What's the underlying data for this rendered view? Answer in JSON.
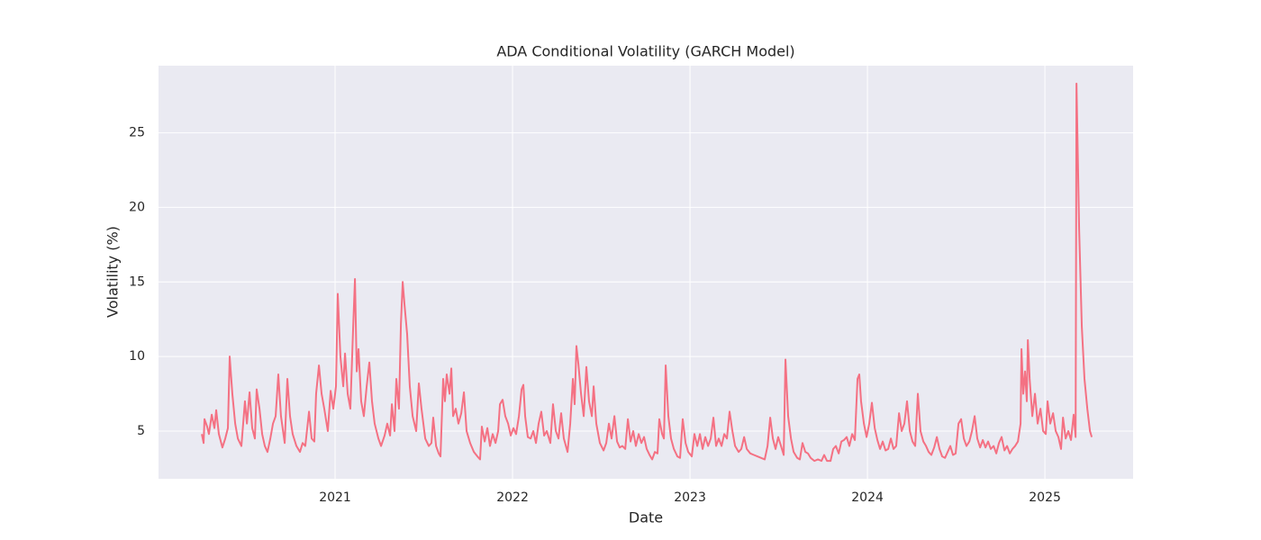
{
  "chart_data": {
    "type": "line",
    "title": "ADA Conditional Volatility (GARCH Model)",
    "x_label": "Date",
    "y_label": "Volatility (%)",
    "color": "#f47183",
    "grid": true,
    "xlim": [
      2020.005,
      2025.497
    ],
    "ylim": [
      1.8,
      29.5
    ],
    "xticks": [
      2021,
      2022,
      2023,
      2024,
      2025
    ],
    "yticks": [
      5,
      10,
      15,
      20,
      25
    ],
    "x": [
      2020.249,
      2020.259,
      2020.264,
      2020.279,
      2020.289,
      2020.305,
      2020.32,
      2020.33,
      2020.345,
      2020.365,
      2020.381,
      2020.396,
      2020.406,
      2020.421,
      2020.437,
      2020.452,
      2020.472,
      2020.492,
      2020.503,
      2020.518,
      2020.533,
      2020.548,
      2020.558,
      2020.574,
      2020.589,
      2020.604,
      2020.619,
      2020.635,
      2020.65,
      2020.665,
      2020.68,
      2020.695,
      2020.716,
      2020.731,
      2020.746,
      2020.761,
      2020.782,
      2020.802,
      2020.817,
      2020.832,
      2020.853,
      2020.868,
      2020.883,
      2020.893,
      2020.909,
      2020.924,
      2020.939,
      2020.959,
      2020.975,
      2020.99,
      2021.005,
      2021.015,
      2021.03,
      2021.046,
      2021.056,
      2021.071,
      2021.086,
      2021.102,
      2021.112,
      2021.122,
      2021.132,
      2021.147,
      2021.162,
      2021.178,
      2021.193,
      2021.208,
      2021.223,
      2021.244,
      2021.259,
      2021.279,
      2021.294,
      2021.31,
      2021.32,
      2021.335,
      2021.345,
      2021.36,
      2021.371,
      2021.381,
      2021.391,
      2021.406,
      2021.421,
      2021.437,
      2021.457,
      2021.472,
      2021.487,
      2021.508,
      2021.528,
      2021.543,
      2021.553,
      2021.569,
      2021.584,
      2021.594,
      2021.609,
      2021.619,
      2021.629,
      2021.645,
      2021.655,
      2021.665,
      2021.68,
      2021.695,
      2021.711,
      2021.726,
      2021.741,
      2021.761,
      2021.782,
      2021.802,
      2021.817,
      2021.827,
      2021.843,
      2021.858,
      2021.873,
      2021.888,
      2021.904,
      2021.919,
      2021.929,
      2021.944,
      2021.959,
      2021.975,
      2021.99,
      2022.005,
      2022.02,
      2022.036,
      2022.051,
      2022.061,
      2022.071,
      2022.086,
      2022.102,
      2022.117,
      2022.132,
      2022.147,
      2022.162,
      2022.178,
      2022.193,
      2022.213,
      2022.228,
      2022.244,
      2022.259,
      2022.274,
      2022.289,
      2022.31,
      2022.325,
      2022.34,
      2022.35,
      2022.36,
      2022.371,
      2022.386,
      2022.401,
      2022.416,
      2022.431,
      2022.447,
      2022.457,
      2022.472,
      2022.492,
      2022.513,
      2022.528,
      2022.543,
      2022.558,
      2022.574,
      2022.589,
      2022.604,
      2022.619,
      2022.635,
      2022.65,
      2022.665,
      2022.68,
      2022.695,
      2022.711,
      2022.726,
      2022.741,
      2022.756,
      2022.772,
      2022.787,
      2022.802,
      2022.817,
      2022.827,
      2022.843,
      2022.853,
      2022.863,
      2022.878,
      2022.893,
      2022.909,
      2022.929,
      2022.944,
      2022.959,
      2022.975,
      2022.99,
      2023.01,
      2023.025,
      2023.041,
      2023.056,
      2023.071,
      2023.086,
      2023.102,
      2023.117,
      2023.132,
      2023.147,
      2023.162,
      2023.178,
      2023.193,
      2023.208,
      2023.223,
      2023.239,
      2023.254,
      2023.274,
      2023.289,
      2023.305,
      2023.32,
      2023.34,
      2023.36,
      2023.381,
      2023.401,
      2023.421,
      2023.437,
      2023.452,
      2023.467,
      2023.482,
      2023.497,
      2023.513,
      2023.528,
      2023.538,
      2023.553,
      2023.569,
      2023.584,
      2023.604,
      2023.619,
      2023.634,
      2023.65,
      2023.665,
      2023.68,
      2023.701,
      2023.721,
      2023.741,
      2023.756,
      2023.772,
      2023.792,
      2023.807,
      2023.822,
      2023.838,
      2023.853,
      2023.868,
      2023.883,
      2023.898,
      2023.914,
      2023.929,
      2023.944,
      2023.954,
      2023.964,
      2023.98,
      2023.995,
      2024.01,
      2024.025,
      2024.041,
      2024.056,
      2024.071,
      2024.086,
      2024.102,
      2024.117,
      2024.132,
      2024.147,
      2024.162,
      2024.178,
      2024.193,
      2024.208,
      2024.223,
      2024.239,
      2024.254,
      2024.269,
      2024.284,
      2024.299,
      2024.315,
      2024.33,
      2024.345,
      2024.36,
      2024.376,
      2024.391,
      2024.406,
      2024.421,
      2024.437,
      2024.452,
      2024.467,
      2024.482,
      2024.497,
      2024.513,
      2024.528,
      2024.543,
      2024.558,
      2024.574,
      2024.589,
      2024.604,
      2024.619,
      2024.635,
      2024.65,
      2024.665,
      2024.68,
      2024.695,
      2024.711,
      2024.726,
      2024.741,
      2024.756,
      2024.772,
      2024.787,
      2024.802,
      2024.817,
      2024.832,
      2024.848,
      2024.863,
      2024.868,
      2024.878,
      2024.888,
      2024.898,
      2024.904,
      2024.914,
      2024.929,
      2024.944,
      2024.959,
      2024.975,
      2024.99,
      2025.005,
      2025.015,
      2025.03,
      2025.046,
      2025.061,
      2025.076,
      2025.091,
      2025.102,
      2025.117,
      2025.132,
      2025.147,
      2025.162,
      2025.173,
      2025.178,
      2025.193,
      2025.208,
      2025.223,
      2025.239,
      2025.254,
      2025.264
    ],
    "values": [
      4.8,
      4.2,
      5.8,
      5.3,
      4.8,
      6.1,
      5.2,
      6.4,
      4.8,
      3.9,
      4.5,
      5.2,
      10.0,
      7.5,
      5.5,
      4.5,
      4.0,
      7.0,
      5.5,
      7.6,
      5.2,
      4.5,
      7.8,
      6.5,
      4.8,
      4.0,
      3.6,
      4.5,
      5.5,
      6.0,
      8.8,
      6.0,
      4.2,
      8.5,
      6.0,
      4.8,
      4.0,
      3.6,
      4.2,
      4.0,
      6.3,
      4.5,
      4.3,
      7.5,
      9.4,
      7.5,
      6.5,
      5.0,
      7.7,
      6.5,
      8.0,
      14.2,
      10.0,
      8.0,
      10.2,
      7.5,
      6.5,
      12.0,
      15.2,
      9.0,
      10.5,
      7.0,
      6.0,
      8.0,
      9.6,
      7.0,
      5.5,
      4.5,
      4.0,
      4.7,
      5.5,
      4.7,
      6.8,
      5.0,
      8.5,
      6.5,
      12.2,
      15.0,
      13.5,
      11.5,
      8.0,
      6.0,
      5.0,
      8.2,
      6.5,
      4.5,
      4.0,
      4.2,
      5.9,
      4.0,
      3.5,
      3.3,
      8.5,
      7.0,
      8.8,
      7.5,
      9.2,
      6.0,
      6.5,
      5.5,
      6.2,
      7.6,
      5.0,
      4.2,
      3.6,
      3.3,
      3.1,
      5.3,
      4.3,
      5.2,
      4.0,
      4.8,
      4.2,
      5.0,
      6.8,
      7.1,
      6.0,
      5.5,
      4.7,
      5.2,
      4.8,
      6.0,
      7.8,
      8.1,
      6.0,
      4.6,
      4.5,
      5.0,
      4.2,
      5.5,
      6.3,
      4.7,
      5.0,
      4.2,
      6.8,
      5.0,
      4.5,
      6.2,
      4.5,
      3.6,
      5.5,
      8.5,
      6.8,
      10.7,
      9.5,
      7.5,
      6.0,
      9.3,
      7.0,
      6.0,
      8.0,
      5.5,
      4.2,
      3.7,
      4.2,
      5.5,
      4.5,
      6.0,
      4.3,
      3.9,
      4.0,
      3.8,
      5.8,
      4.3,
      5.0,
      4.0,
      4.8,
      4.2,
      4.6,
      3.8,
      3.4,
      3.1,
      3.6,
      3.5,
      5.8,
      4.8,
      4.5,
      9.4,
      6.0,
      4.5,
      3.8,
      3.3,
      3.2,
      5.8,
      4.2,
      3.6,
      3.3,
      4.8,
      4.0,
      4.8,
      3.8,
      4.6,
      4.0,
      4.5,
      5.9,
      4.0,
      4.5,
      4.0,
      4.8,
      4.5,
      6.3,
      5.0,
      4.0,
      3.6,
      3.8,
      4.6,
      3.8,
      3.5,
      3.4,
      3.3,
      3.2,
      3.1,
      4.0,
      5.9,
      4.5,
      3.8,
      4.6,
      4.0,
      3.4,
      9.8,
      6.0,
      4.5,
      3.6,
      3.2,
      3.1,
      4.2,
      3.6,
      3.5,
      3.2,
      3.0,
      3.1,
      3.0,
      3.4,
      3.0,
      3.0,
      3.8,
      4.0,
      3.5,
      4.3,
      4.4,
      4.6,
      4.0,
      4.8,
      4.4,
      8.5,
      8.8,
      7.0,
      5.5,
      4.6,
      5.5,
      6.9,
      5.2,
      4.4,
      3.8,
      4.3,
      3.7,
      3.8,
      4.5,
      3.8,
      4.0,
      6.2,
      5.0,
      5.5,
      7.0,
      5.0,
      4.3,
      4.0,
      7.5,
      5.0,
      4.3,
      4.0,
      3.6,
      3.4,
      3.9,
      4.6,
      3.8,
      3.3,
      3.2,
      3.6,
      4.0,
      3.4,
      3.5,
      5.5,
      5.8,
      4.5,
      4.0,
      4.3,
      5.0,
      6.0,
      4.5,
      3.9,
      4.4,
      3.9,
      4.3,
      3.8,
      4.0,
      3.5,
      4.2,
      4.6,
      3.7,
      4.0,
      3.5,
      3.8,
      4.0,
      4.3,
      5.5,
      10.5,
      7.5,
      9.0,
      7.0,
      11.1,
      8.5,
      6.0,
      7.5,
      5.5,
      6.5,
      5.0,
      4.8,
      7.0,
      5.5,
      6.2,
      5.0,
      4.6,
      3.8,
      5.9,
      4.5,
      5.0,
      4.4,
      6.1,
      4.6,
      28.3,
      18.5,
      12.0,
      8.5,
      6.5,
      5.0,
      4.6
    ]
  }
}
